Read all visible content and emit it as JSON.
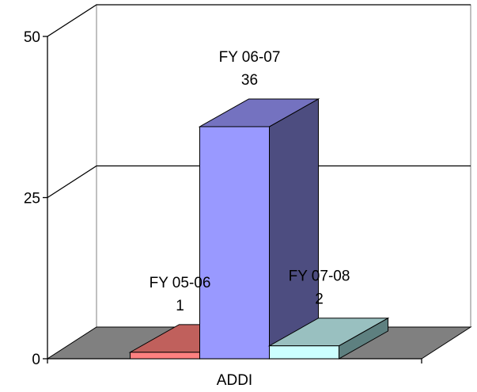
{
  "chart_data": {
    "type": "bar",
    "style": "3d-clustered-column",
    "categories": [
      "ADDI"
    ],
    "series": [
      {
        "name": "FY 05-06",
        "values": [
          1
        ],
        "data_label": "1",
        "face_color": "#ff8080",
        "top_color": "#c0605c",
        "side_color": "#a04848"
      },
      {
        "name": "FY 06-07",
        "values": [
          36
        ],
        "data_label": "36",
        "face_color": "#9999ff",
        "top_color": "#7472c0",
        "side_color": "#4d4d80"
      },
      {
        "name": "FY 07-08",
        "values": [
          2
        ],
        "data_label": "2",
        "face_color": "#ccffff",
        "top_color": "#99c0c0",
        "side_color": "#5e8080"
      }
    ],
    "yticks": [
      "0",
      "25",
      "50"
    ],
    "ylim": [
      0,
      50
    ],
    "grid": true,
    "floor_color": "#808080",
    "wall_color": "#ffffff",
    "title": "",
    "xlabel": "",
    "ylabel": ""
  }
}
